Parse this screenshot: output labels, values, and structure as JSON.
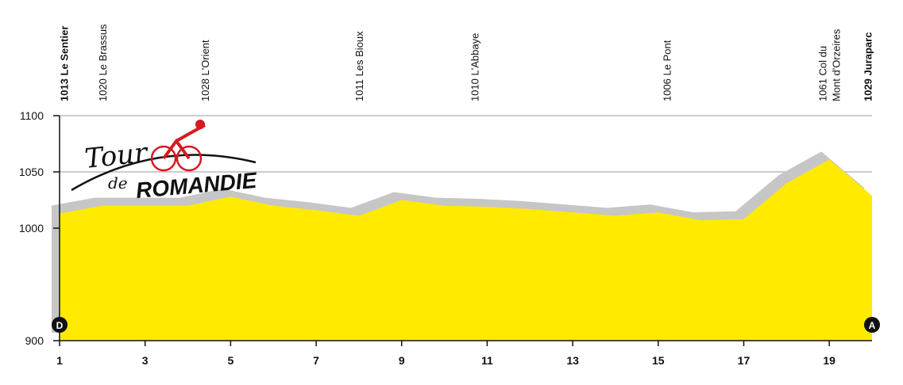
{
  "chart_data": {
    "type": "area",
    "x": [
      1,
      2,
      3,
      4,
      5,
      6,
      7,
      8,
      9,
      10,
      11,
      12,
      13,
      14,
      15,
      16,
      17,
      18,
      19,
      20
    ],
    "values": [
      1013,
      1020,
      1020,
      1020,
      1028,
      1020,
      1016,
      1011,
      1025,
      1020,
      1019,
      1017,
      1014,
      1011,
      1014,
      1007,
      1008,
      1040,
      1061,
      1029
    ],
    "color": "#ffea00",
    "shadow_color": "#c6c6c6",
    "xlim": [
      1,
      20
    ],
    "ylim": [
      900,
      1100
    ],
    "xticks": [
      1,
      3,
      5,
      7,
      9,
      11,
      13,
      15,
      17,
      19
    ],
    "yticks": [
      900,
      1000,
      1050,
      1100
    ],
    "grid": true,
    "annotations": [
      {
        "x": 1.1,
        "lines": [
          "1013 Le Sentier"
        ]
      },
      {
        "x": 2,
        "lines": [
          "1020 Le Brassus"
        ]
      },
      {
        "x": 4.4,
        "lines": [
          "1028 L'Orient"
        ]
      },
      {
        "x": 8,
        "lines": [
          "1011 Les Bioux"
        ]
      },
      {
        "x": 10.7,
        "lines": [
          "1010 L'Abbaye"
        ]
      },
      {
        "x": 15.2,
        "lines": [
          "1006 Le Pont"
        ]
      },
      {
        "x": 19,
        "lines": [
          "1061 Col du",
          "Mont d'Orzeires"
        ]
      },
      {
        "x": 19.9,
        "lines": [
          "1029 Juraparc"
        ]
      }
    ],
    "start_marker": "D",
    "end_marker": "A",
    "logo": [
      "Tour",
      "de",
      "ROMANDIE"
    ]
  }
}
